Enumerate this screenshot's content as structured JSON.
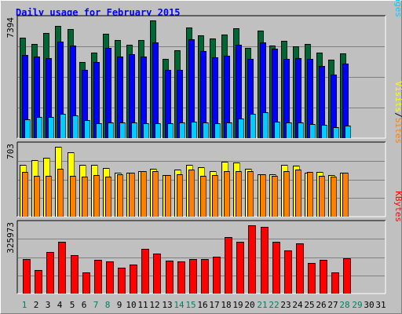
{
  "chart_data": [
    {
      "type": "bar",
      "title": "Daily usage for February 2015",
      "categories": [
        "1",
        "2",
        "3",
        "4",
        "5",
        "6",
        "7",
        "8",
        "9",
        "10",
        "11",
        "12",
        "13",
        "14",
        "15",
        "16",
        "17",
        "18",
        "19",
        "20",
        "21",
        "22",
        "23",
        "24",
        "25",
        "26",
        "27",
        "28",
        "29",
        "30",
        "31"
      ],
      "weekend_days": [
        "1",
        "7",
        "8",
        "14",
        "15",
        "21",
        "22",
        "28",
        "29"
      ],
      "ymax_label": "7394",
      "ymax": 7394,
      "ylabel_parts": [
        "Pages",
        "/",
        "Files",
        "/",
        "Hits"
      ],
      "series": [
        {
          "name": "Hits",
          "color": "#006633",
          "values": [
            6330,
            5910,
            6590,
            7070,
            6870,
            4770,
            5370,
            6560,
            6180,
            5890,
            6180,
            7394,
            4970,
            5530,
            6960,
            6480,
            6260,
            6490,
            6900,
            5670,
            6770,
            5830,
            6100,
            5750,
            5930,
            5370,
            4950,
            5330,
            null,
            null,
            null
          ]
        },
        {
          "name": "Files",
          "color": "#0000ff",
          "values": [
            5230,
            5150,
            5050,
            6060,
            5810,
            4280,
            4760,
            5660,
            5140,
            5280,
            5140,
            5990,
            4280,
            4310,
            6230,
            5470,
            5060,
            5190,
            5850,
            5000,
            6030,
            5600,
            4960,
            5050,
            4990,
            4550,
            3970,
            4670,
            null,
            null,
            null
          ]
        },
        {
          "name": "Pages",
          "color": "#00ccff",
          "values": [
            1170,
            1330,
            1310,
            1540,
            1420,
            1140,
            930,
            1000,
            970,
            970,
            960,
            930,
            920,
            980,
            1040,
            980,
            940,
            980,
            1240,
            1540,
            1650,
            1020,
            990,
            980,
            890,
            860,
            670,
            800,
            null,
            null,
            null
          ]
        }
      ]
    },
    {
      "type": "bar",
      "ymax_label": "703",
      "ymax": 703,
      "ylabel_parts": [
        "Sites",
        "/",
        "Visits"
      ],
      "series": [
        {
          "name": "Visits",
          "color": "#ffff00",
          "values": [
            520,
            565,
            590,
            703,
            650,
            520,
            520,
            490,
            440,
            440,
            460,
            480,
            420,
            470,
            520,
            500,
            460,
            550,
            545,
            480,
            430,
            430,
            525,
            510,
            445,
            450,
            420,
            440,
            null,
            null,
            null
          ]
        },
        {
          "name": "Sites",
          "color": "#ff8000",
          "values": [
            450,
            410,
            410,
            480,
            410,
            400,
            420,
            400,
            430,
            440,
            460,
            460,
            420,
            430,
            470,
            410,
            420,
            460,
            460,
            460,
            430,
            410,
            460,
            470,
            450,
            410,
            400,
            440,
            null,
            null,
            null
          ]
        }
      ]
    },
    {
      "type": "bar",
      "ymax_label": "325973",
      "ymax": 325973,
      "ylabel_parts": [
        "KBytes"
      ],
      "series": [
        {
          "name": "KBytes",
          "color": "#ff0000",
          "values": [
            166000,
            111000,
            200000,
            246000,
            183000,
            102000,
            162000,
            155000,
            123000,
            140000,
            214000,
            191000,
            156000,
            155000,
            164000,
            164000,
            175000,
            270000,
            249000,
            325973,
            318000,
            249000,
            207000,
            238000,
            146000,
            162000,
            101000,
            168000,
            null,
            null,
            null
          ]
        }
      ]
    }
  ]
}
